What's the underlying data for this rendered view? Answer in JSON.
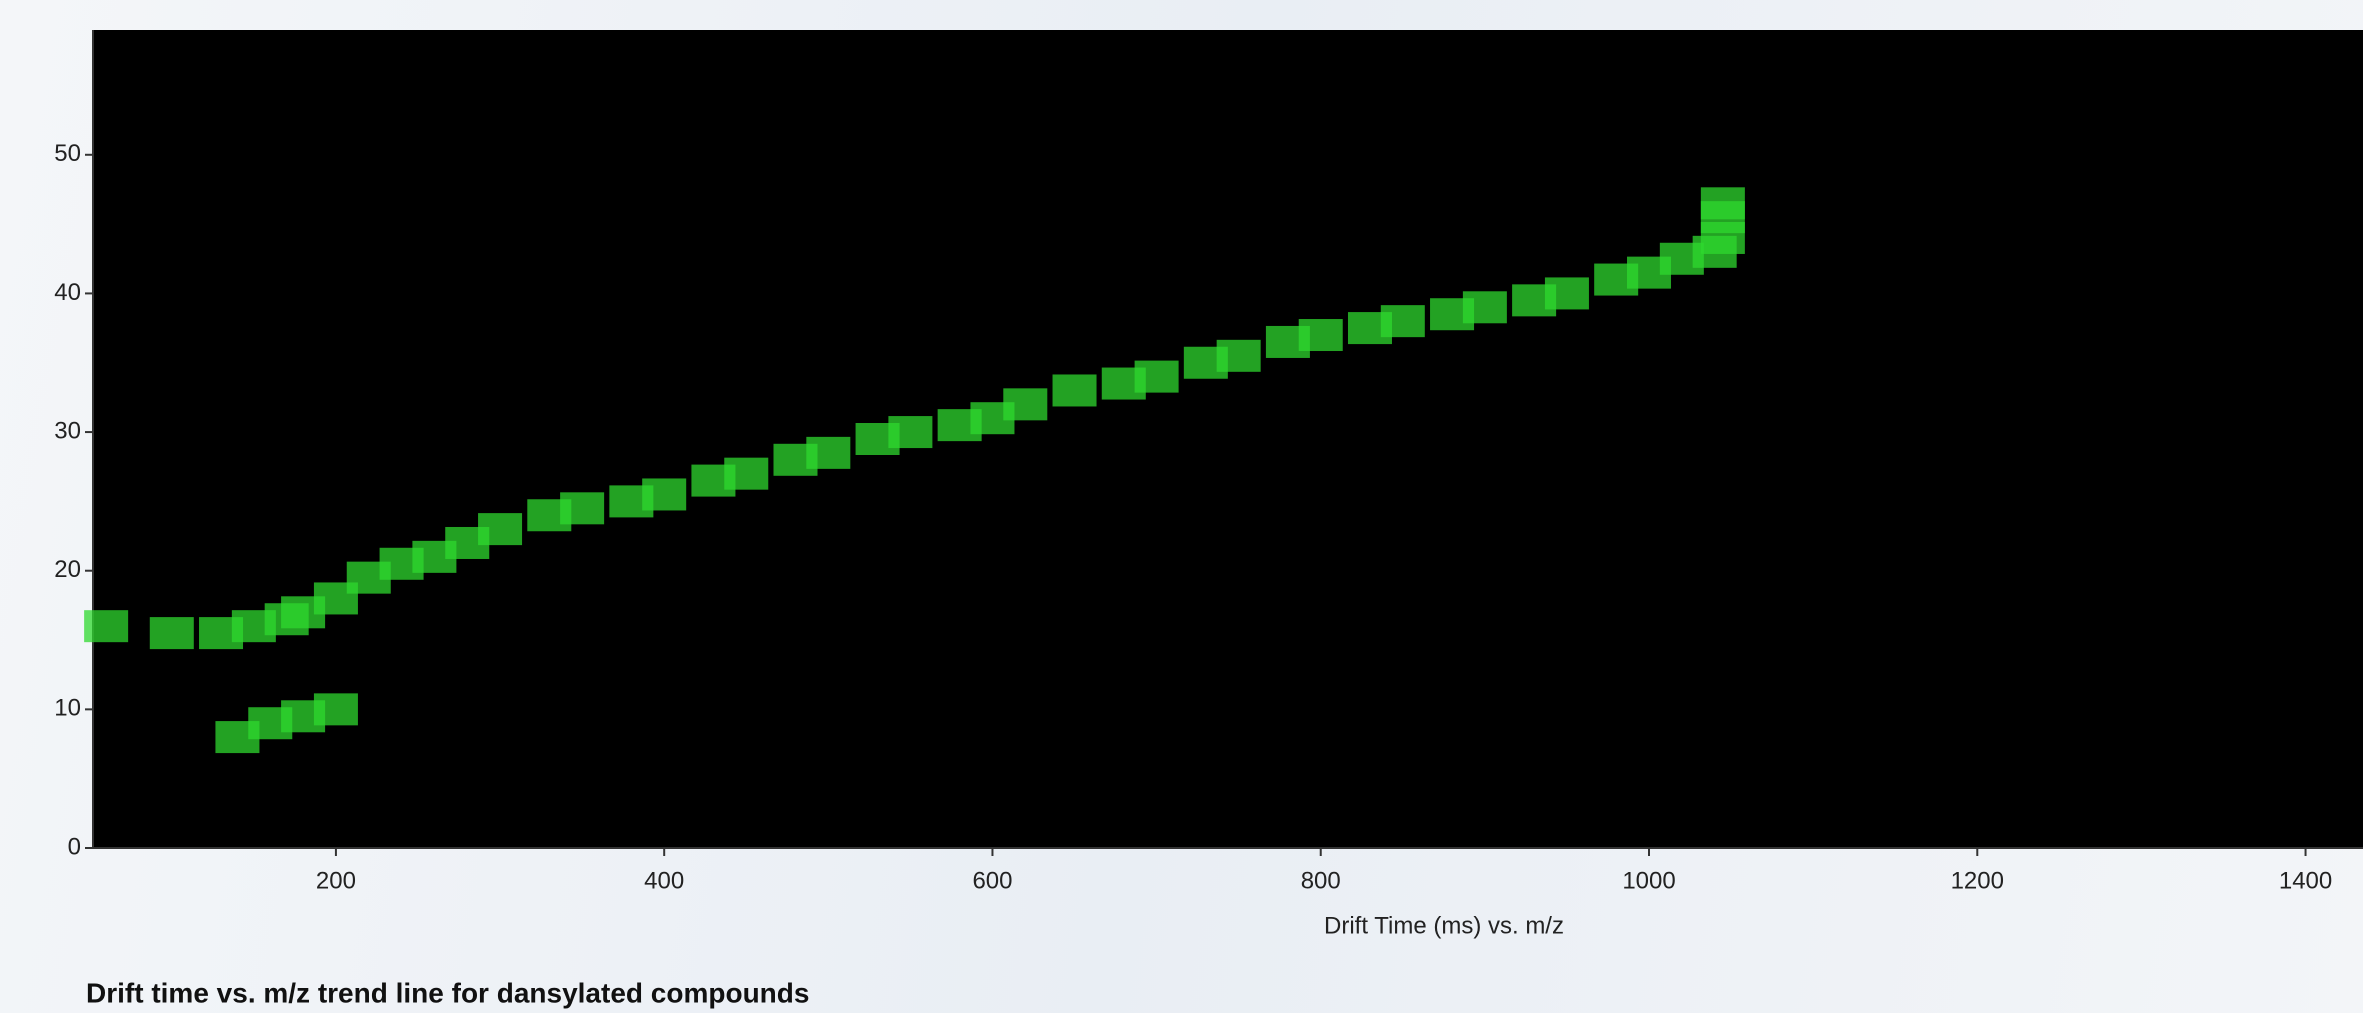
{
  "chart_data": {
    "type": "scatter",
    "title": "Drift time vs. m/z trend line for dansylated compounds",
    "x_label": "Drift Time (ms) vs. m/z",
    "x": [
      60,
      100,
      130,
      150,
      170,
      180,
      200,
      220,
      240,
      260,
      280,
      300,
      330,
      350,
      380,
      400,
      430,
      450,
      480,
      500,
      530,
      550,
      580,
      600,
      620,
      650,
      680,
      700,
      730,
      750,
      780,
      800,
      830,
      850,
      880,
      900,
      930,
      950,
      980,
      1000,
      1020,
      1040,
      1045,
      1045,
      1045,
      140,
      160,
      180,
      200
    ],
    "values": [
      16,
      15.5,
      15.5,
      16,
      16.5,
      17,
      18,
      19.5,
      20.5,
      21,
      22,
      23,
      24,
      24.5,
      25,
      25.5,
      26.5,
      27,
      28,
      28.5,
      29.5,
      30,
      30.5,
      31,
      32,
      33,
      33.5,
      34,
      35,
      35.5,
      36.5,
      37,
      37.5,
      38,
      38.5,
      39,
      39.5,
      40,
      41,
      41.5,
      42.5,
      43,
      44,
      45.5,
      46.5,
      8,
      9,
      9.5,
      10
    ],
    "color": "#2fd82f",
    "xlim": [
      52,
      1435
    ],
    "ylim": [
      0,
      59
    ],
    "xticks": [
      200,
      400,
      600,
      800,
      1000,
      1200,
      1400
    ],
    "yticks": [
      0,
      10,
      20,
      30,
      40,
      50
    ]
  }
}
